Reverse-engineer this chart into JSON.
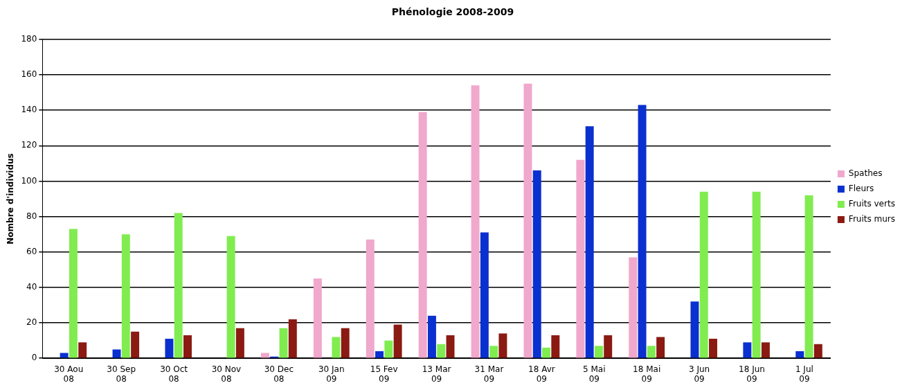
{
  "chart_data": {
    "type": "bar",
    "title": "Phénologie 2008-2009",
    "ylabel": "Nombre d'individus",
    "categories": [
      "30 Aou 08",
      "30 Sep 08",
      "30 Oct 08",
      "30 Nov 08",
      "30 Dec 08",
      "30 Jan 09",
      "15 Fev 09",
      "13 Mar 09",
      "31 Mar 09",
      "18 Avr 09",
      "5 Mai 09",
      "18 Mai 09",
      "3 Jun 09",
      "18 Jun 09",
      "1 Jul 09"
    ],
    "series": [
      {
        "name": "Spathes",
        "color": "#f0a8cc",
        "values": [
          0,
          0,
          0,
          0,
          3,
          45,
          67,
          139,
          154,
          155,
          112,
          57,
          0,
          0,
          0
        ]
      },
      {
        "name": "Fleurs",
        "color": "#0a30d0",
        "values": [
          3,
          5,
          11,
          0,
          1,
          0,
          4,
          24,
          71,
          106,
          131,
          143,
          32,
          9,
          4
        ]
      },
      {
        "name": "Fruits verts",
        "color": "#80ec50",
        "values": [
          73,
          70,
          82,
          69,
          17,
          12,
          10,
          8,
          7,
          6,
          7,
          7,
          94,
          94,
          92
        ]
      },
      {
        "name": "Fruits murs",
        "color": "#8a1a12",
        "values": [
          9,
          15,
          13,
          17,
          22,
          17,
          19,
          13,
          14,
          13,
          13,
          12,
          11,
          9,
          8
        ]
      }
    ],
    "ylim": [
      0,
      180
    ],
    "yticks": [
      0,
      20,
      40,
      60,
      80,
      100,
      120,
      140,
      160,
      180
    ],
    "grid": "y",
    "legend": "right"
  }
}
